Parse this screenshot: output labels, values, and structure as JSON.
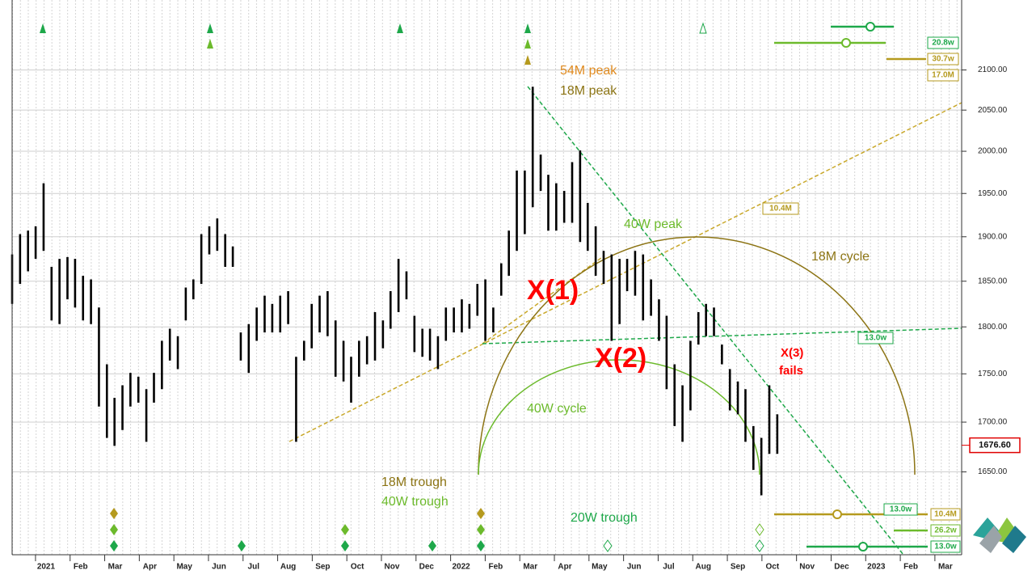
{
  "chart_data": {
    "type": "ohlc",
    "color": "#000000",
    "log_scale": true,
    "grid": true,
    "ylim": [
      1570,
      2190
    ],
    "yticks": [
      {
        "value": 1650,
        "label": "1650.00"
      },
      {
        "value": 1700,
        "label": "1700.00"
      },
      {
        "value": 1750,
        "label": "1750.00"
      },
      {
        "value": 1800,
        "label": "1800.00"
      },
      {
        "value": 1850,
        "label": "1850.00"
      },
      {
        "value": 1900,
        "label": "1900.00"
      },
      {
        "value": 1950,
        "label": "1950.00"
      },
      {
        "value": 2000,
        "label": "2000.00"
      },
      {
        "value": 2050,
        "label": "2050.00"
      },
      {
        "value": 2100,
        "label": "2100.00"
      }
    ],
    "xlim": [
      -0.98,
      26.47
    ],
    "xticks": [
      {
        "value": 0,
        "label": "2021"
      },
      {
        "value": 1,
        "label": "Feb"
      },
      {
        "value": 2,
        "label": "Mar"
      },
      {
        "value": 3,
        "label": "Apr"
      },
      {
        "value": 4,
        "label": "May"
      },
      {
        "value": 5,
        "label": "Jun"
      },
      {
        "value": 6,
        "label": "Jul"
      },
      {
        "value": 7,
        "label": "Aug"
      },
      {
        "value": 8,
        "label": "Sep"
      },
      {
        "value": 9,
        "label": "Oct"
      },
      {
        "value": 10,
        "label": "Nov"
      },
      {
        "value": 11,
        "label": "Dec"
      },
      {
        "value": 12,
        "label": "2022"
      },
      {
        "value": 13,
        "label": "Feb"
      },
      {
        "value": 14,
        "label": "Mar"
      },
      {
        "value": 15,
        "label": "Apr"
      },
      {
        "value": 16,
        "label": "May"
      },
      {
        "value": 17,
        "label": "Jun"
      },
      {
        "value": 18,
        "label": "Jul"
      },
      {
        "value": 19,
        "label": "Aug"
      },
      {
        "value": 20,
        "label": "Sep"
      },
      {
        "value": 21,
        "label": "Oct"
      },
      {
        "value": 22,
        "label": "Nov"
      },
      {
        "value": 23,
        "label": "Dec"
      },
      {
        "value": 24,
        "label": "2023"
      },
      {
        "value": 25,
        "label": "Feb"
      },
      {
        "value": 26,
        "label": "Mar"
      }
    ],
    "x": [
      -0.98,
      -0.75,
      -0.52,
      -0.3,
      -0.07,
      0.16,
      0.39,
      0.62,
      0.84,
      1.07,
      1.3,
      1.53,
      1.76,
      1.98,
      2.21,
      2.44,
      2.67,
      2.9,
      3.12,
      3.35,
      3.58,
      3.81,
      4.04,
      4.26,
      4.49,
      4.72,
      4.95,
      5.18,
      5.4,
      5.63,
      5.86,
      6.09,
      6.32,
      6.54,
      6.77,
      7.0,
      7.23,
      7.46,
      7.68,
      7.91,
      8.14,
      8.37,
      8.6,
      8.82,
      9.05,
      9.28,
      9.51,
      9.74,
      9.96,
      10.19,
      10.42,
      10.65,
      10.88,
      11.1,
      11.33,
      11.56,
      11.79,
      12.02,
      12.24,
      12.47,
      12.7,
      12.93,
      13.16,
      13.38,
      13.61,
      13.84,
      14.07,
      14.3,
      14.52,
      14.75,
      14.98,
      15.21,
      15.44,
      15.66,
      15.89,
      16.12,
      16.35,
      16.58,
      16.8,
      17.03,
      17.26,
      17.49,
      17.72,
      17.94,
      18.17,
      18.4,
      18.63,
      18.86,
      19.08,
      19.31,
      19.54,
      19.77,
      20.0,
      20.22,
      20.45,
      20.68,
      20.91,
      21.14
    ],
    "high": [
      1880,
      1903,
      1907,
      1912,
      1962,
      1866,
      1875,
      1877,
      1875,
      1856,
      1852,
      1821,
      1760,
      1725,
      1738,
      1751,
      1747,
      1734,
      1751,
      1785,
      1798,
      1790,
      1843,
      1852,
      1903,
      1912,
      1921,
      1903,
      1889,
      1794,
      1803,
      1821,
      1834,
      1825,
      1834,
      1839,
      1768,
      1785,
      1825,
      1834,
      1839,
      1807,
      1785,
      1768,
      1785,
      1790,
      1816,
      1807,
      1839,
      1875,
      1861,
      1812,
      1798,
      1798,
      1790,
      1821,
      1821,
      1830,
      1825,
      1847,
      1852,
      1821,
      1870,
      1907,
      1977,
      1977,
      2079,
      1996,
      1972,
      1962,
      1953,
      1987,
      2001,
      1939,
      1912,
      1884,
      1880,
      1875,
      1875,
      1884,
      1880,
      1852,
      1830,
      1812,
      1760,
      1738,
      1785,
      1816,
      1825,
      1821,
      1781,
      1755,
      1742,
      1734,
      1696,
      1684,
      1738,
      1708
    ],
    "low": [
      1825,
      1847,
      1861,
      1875,
      1884,
      1807,
      1803,
      1830,
      1821,
      1807,
      1803,
      1716,
      1684,
      1676,
      1692,
      1716,
      1720,
      1680,
      1720,
      1734,
      1764,
      1755,
      1807,
      1830,
      1847,
      1880,
      1884,
      1866,
      1866,
      1764,
      1751,
      1785,
      1794,
      1794,
      1794,
      1803,
      1680,
      1764,
      1777,
      1794,
      1790,
      1747,
      1742,
      1720,
      1747,
      1760,
      1764,
      1777,
      1798,
      1816,
      1830,
      1773,
      1768,
      1764,
      1755,
      1785,
      1794,
      1794,
      1798,
      1812,
      1785,
      1794,
      1834,
      1856,
      1884,
      1903,
      1934,
      1953,
      1907,
      1907,
      1916,
      1916,
      1894,
      1884,
      1856,
      1847,
      1785,
      1803,
      1839,
      1834,
      1807,
      1812,
      1785,
      1734,
      1696,
      1680,
      1712,
      1781,
      1790,
      1790,
      1760,
      1712,
      1708,
      1680,
      1652,
      1627,
      1668,
      1668
    ],
    "last_price": {
      "value": 1676.6,
      "label": "1676.60"
    },
    "annotations": [
      {
        "text": "54M peak",
        "color": "#e08a1e"
      },
      {
        "text": "18M peak",
        "color": "#8c7414"
      },
      {
        "text": "40W peak",
        "color": "#6cba2c"
      },
      {
        "text": "18M cycle",
        "color": "#8c7414"
      },
      {
        "text": "X(1)",
        "color": "#ff0000"
      },
      {
        "text": "X(2)",
        "color": "#ff0000"
      },
      {
        "text": "X(3)",
        "color": "#ff0000"
      },
      {
        "text": "fails",
        "color": "#ff0000"
      },
      {
        "text": "40W cycle",
        "color": "#6cba2c"
      },
      {
        "text": "18M trough",
        "color": "#8c7414"
      },
      {
        "text": "40W trough",
        "color": "#6cba2c"
      },
      {
        "text": "20W trough",
        "color": "#1ea84a"
      },
      {
        "text": "20.8w",
        "color": "#1ea84a"
      },
      {
        "text": "30.7w",
        "color": "#b59a1e"
      },
      {
        "text": "17.0M",
        "color": "#b59a1e"
      },
      {
        "text": "10.4M",
        "color": "#b59a1e"
      },
      {
        "text": "13.0w",
        "color": "#1ea84a"
      },
      {
        "text": "13.0w",
        "color": "#1ea84a"
      },
      {
        "text": "10.4M",
        "color": "#b59a1e"
      },
      {
        "text": "26.2w",
        "color": "#6cba2c"
      },
      {
        "text": "13.0w",
        "color": "#1ea84a"
      }
    ]
  }
}
